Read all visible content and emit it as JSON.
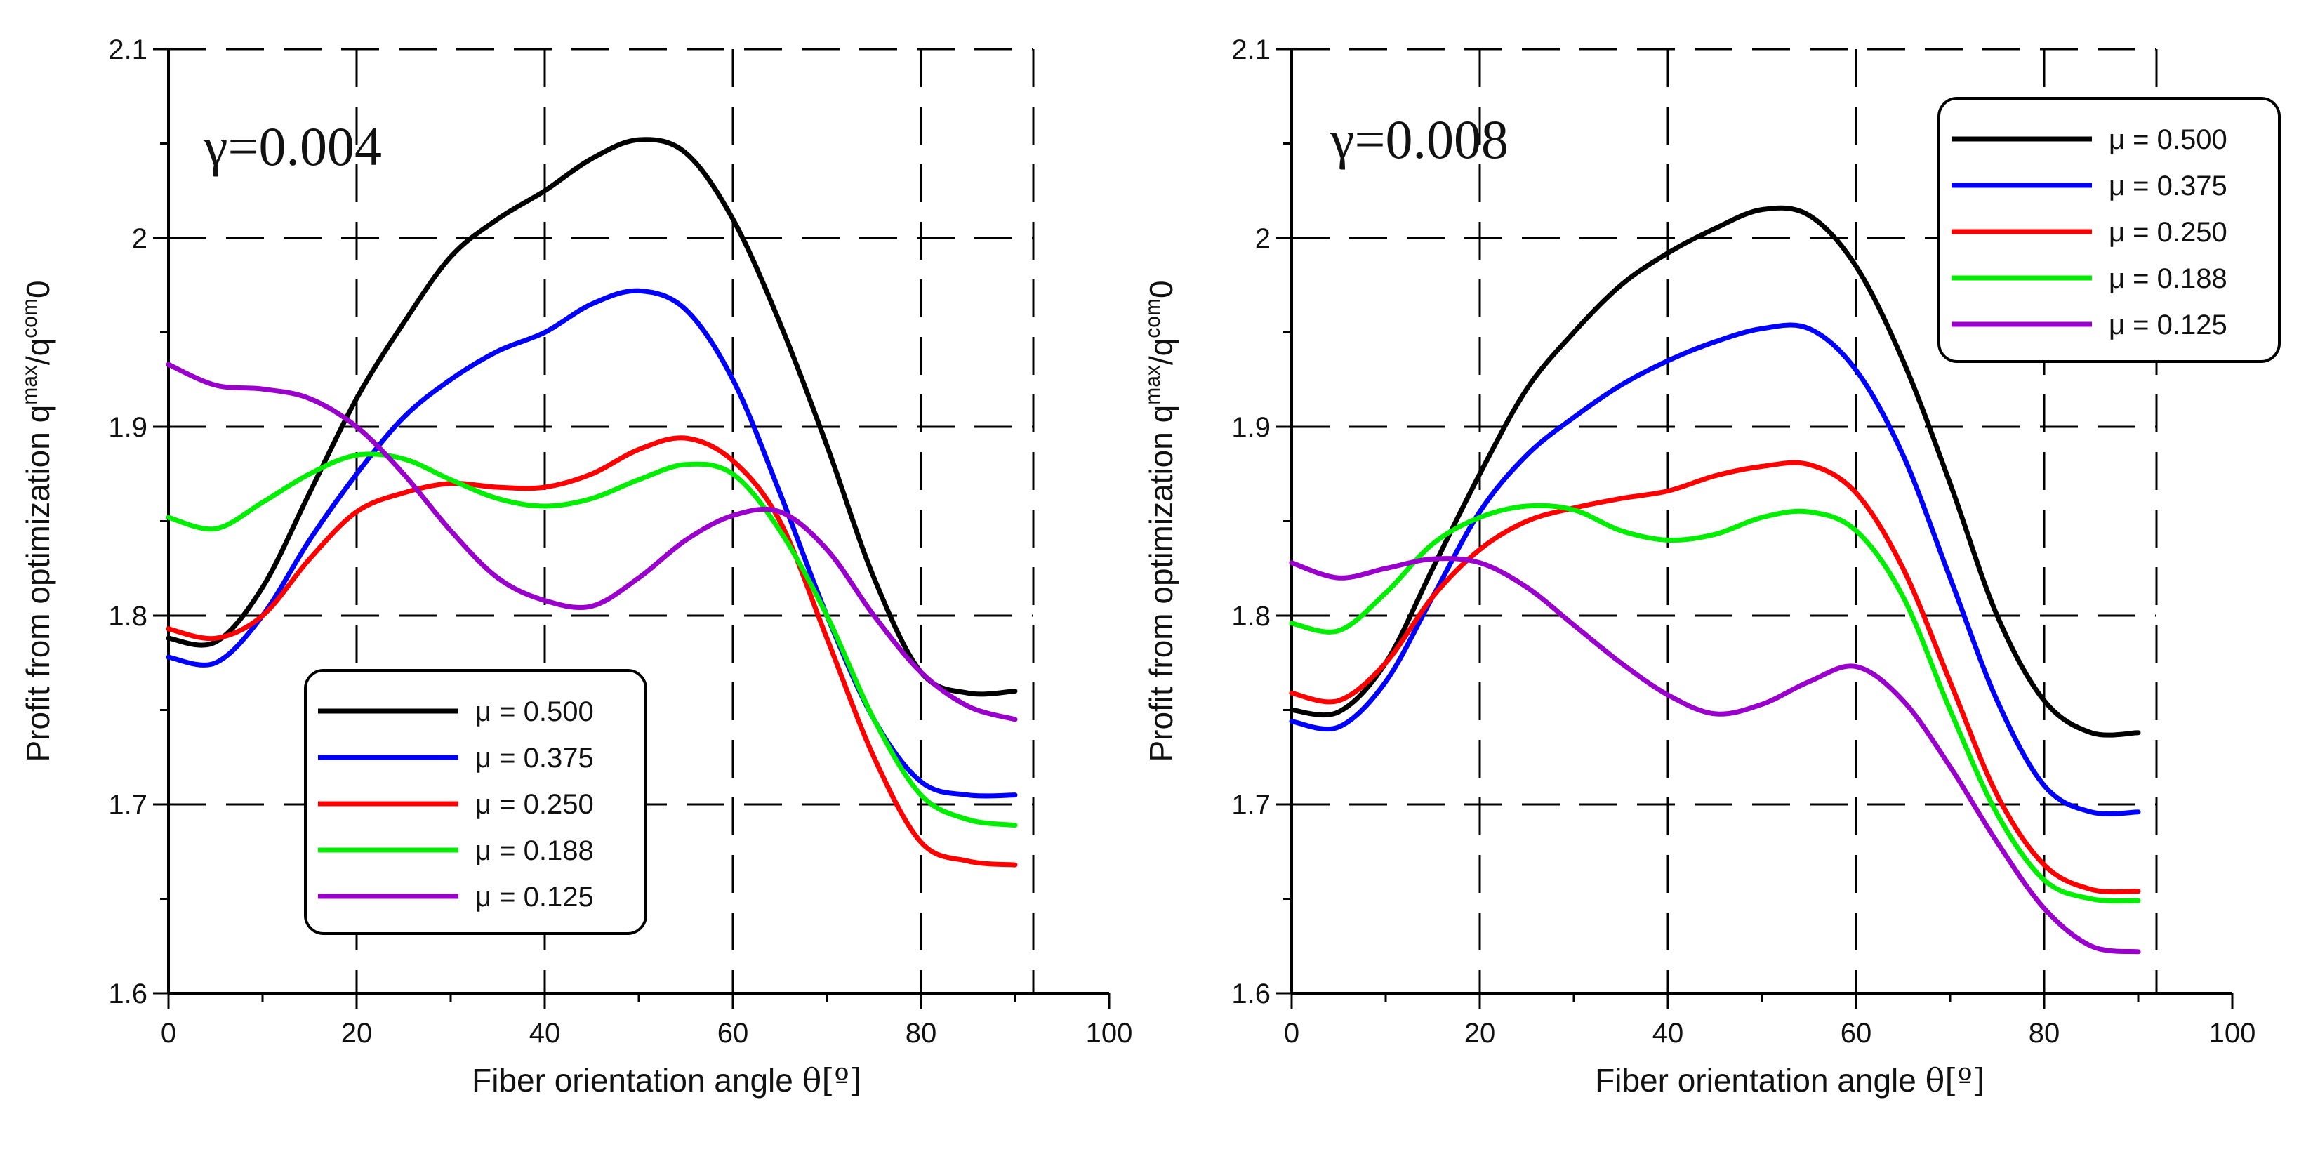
{
  "chart_data": [
    {
      "type": "line",
      "annotation": "γ=0.004",
      "xlabel": "Fiber orientation angle",
      "xlabel_symbol": "θ[º]",
      "ylabel": "Profit from optimization q",
      "ylabel_sup1": "max",
      "ylabel_mid": "/q",
      "ylabel_sup2": "com",
      "ylabel_end": "0",
      "xlim": [
        0,
        100
      ],
      "ylim": [
        1.6,
        2.1
      ],
      "xticks": [
        "0",
        "20",
        "40",
        "60",
        "80",
        "100"
      ],
      "yticks": [
        "1.6",
        "1.7",
        "1.8",
        "1.9",
        "2",
        "2.1"
      ],
      "grid": true,
      "legend_position": "bottom-center",
      "x": [
        0,
        5,
        10,
        15,
        20,
        25,
        30,
        35,
        40,
        45,
        50,
        55,
        60,
        65,
        70,
        75,
        80,
        85,
        90
      ],
      "series": [
        {
          "name": "μ = 0.500",
          "color": "#000000",
          "values": [
            1.788,
            1.786,
            1.815,
            1.865,
            1.915,
            1.955,
            1.99,
            2.01,
            2.025,
            2.042,
            2.052,
            2.045,
            2.01,
            1.955,
            1.89,
            1.82,
            1.77,
            1.759,
            1.76
          ]
        },
        {
          "name": "μ = 0.375",
          "color": "#0000ff",
          "values": [
            1.778,
            1.775,
            1.8,
            1.84,
            1.875,
            1.905,
            1.925,
            1.94,
            1.95,
            1.965,
            1.972,
            1.962,
            1.925,
            1.865,
            1.8,
            1.745,
            1.712,
            1.705,
            1.705
          ]
        },
        {
          "name": "μ = 0.250",
          "color": "#ff0000",
          "values": [
            1.793,
            1.788,
            1.8,
            1.83,
            1.855,
            1.865,
            1.87,
            1.868,
            1.868,
            1.875,
            1.888,
            1.894,
            1.882,
            1.85,
            1.788,
            1.725,
            1.68,
            1.67,
            1.668
          ]
        },
        {
          "name": "μ = 0.188",
          "color": "#00ee00",
          "values": [
            1.852,
            1.846,
            1.86,
            1.875,
            1.885,
            1.883,
            1.872,
            1.862,
            1.858,
            1.862,
            1.872,
            1.88,
            1.875,
            1.845,
            1.8,
            1.745,
            1.705,
            1.692,
            1.689
          ]
        },
        {
          "name": "μ = 0.125",
          "color": "#9900cc",
          "values": [
            1.933,
            1.922,
            1.92,
            1.915,
            1.9,
            1.875,
            1.845,
            1.82,
            1.808,
            1.805,
            1.82,
            1.84,
            1.853,
            1.855,
            1.835,
            1.8,
            1.77,
            1.752,
            1.745
          ]
        }
      ]
    },
    {
      "type": "line",
      "annotation": "γ=0.008",
      "xlabel": "Fiber orientation angle",
      "xlabel_symbol": "θ[º]",
      "ylabel": "Profit from optimization q",
      "ylabel_sup1": "max",
      "ylabel_mid": "/q",
      "ylabel_sup2": "com",
      "ylabel_end": "0",
      "xlim": [
        0,
        100
      ],
      "ylim": [
        1.6,
        2.1
      ],
      "xticks": [
        "0",
        "20",
        "40",
        "60",
        "80",
        "100"
      ],
      "yticks": [
        "1.6",
        "1.7",
        "1.8",
        "1.9",
        "2",
        "2.1"
      ],
      "grid": true,
      "legend_position": "top-right",
      "x": [
        0,
        5,
        10,
        15,
        20,
        25,
        30,
        35,
        40,
        45,
        50,
        55,
        60,
        65,
        70,
        75,
        80,
        85,
        90
      ],
      "series": [
        {
          "name": "μ = 0.500",
          "color": "#000000",
          "values": [
            1.75,
            1.749,
            1.775,
            1.825,
            1.875,
            1.92,
            1.95,
            1.975,
            1.992,
            2.005,
            2.015,
            2.012,
            1.985,
            1.935,
            1.87,
            1.8,
            1.755,
            1.738,
            1.738
          ]
        },
        {
          "name": "μ = 0.375",
          "color": "#0000ff",
          "values": [
            1.744,
            1.741,
            1.765,
            1.81,
            1.855,
            1.885,
            1.905,
            1.922,
            1.935,
            1.945,
            1.952,
            1.952,
            1.93,
            1.885,
            1.82,
            1.755,
            1.71,
            1.696,
            1.696
          ]
        },
        {
          "name": "μ = 0.250",
          "color": "#ff0000",
          "values": [
            1.759,
            1.755,
            1.775,
            1.81,
            1.835,
            1.85,
            1.857,
            1.862,
            1.866,
            1.874,
            1.879,
            1.88,
            1.865,
            1.825,
            1.765,
            1.705,
            1.668,
            1.655,
            1.654
          ]
        },
        {
          "name": "μ = 0.188",
          "color": "#00ee00",
          "values": [
            1.796,
            1.792,
            1.812,
            1.838,
            1.852,
            1.858,
            1.856,
            1.845,
            1.84,
            1.843,
            1.852,
            1.855,
            1.845,
            1.81,
            1.75,
            1.695,
            1.66,
            1.65,
            1.649
          ]
        },
        {
          "name": "μ = 0.125",
          "color": "#9900cc",
          "values": [
            1.828,
            1.82,
            1.825,
            1.83,
            1.828,
            1.815,
            1.795,
            1.775,
            1.758,
            1.748,
            1.753,
            1.765,
            1.773,
            1.755,
            1.72,
            1.68,
            1.645,
            1.625,
            1.622
          ]
        }
      ]
    }
  ]
}
